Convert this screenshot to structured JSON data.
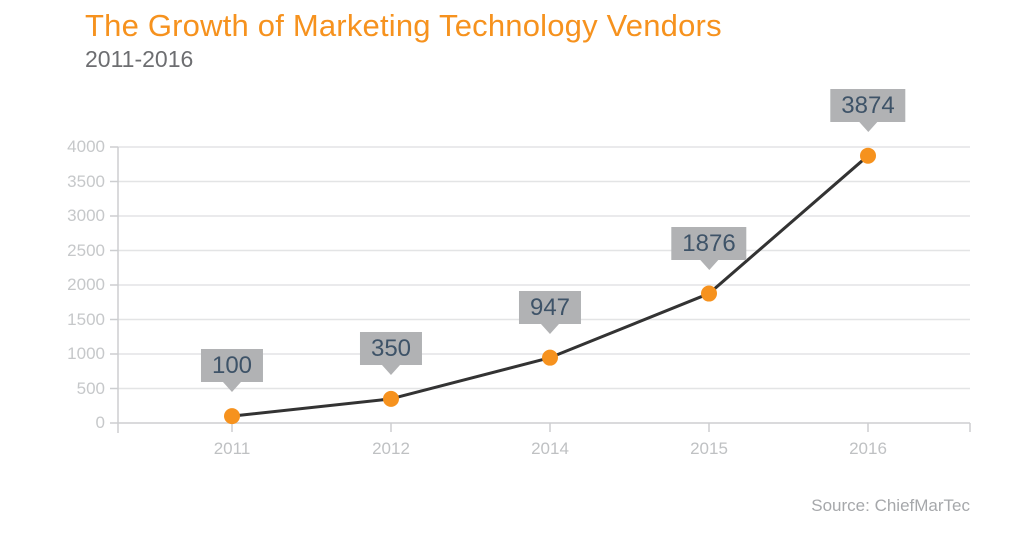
{
  "footer": {
    "source": "Source: ChiefMarTec"
  },
  "chart_data": {
    "type": "line",
    "title": "The Growth of Marketing Technology Vendors",
    "subtitle": "2011-2016",
    "categories": [
      "2011",
      "2012",
      "2014",
      "2015",
      "2016"
    ],
    "values": [
      100,
      350,
      947,
      1876,
      3874
    ],
    "xlabel": "",
    "ylabel": "",
    "ylim": [
      0,
      4000
    ],
    "ytick_step": 500,
    "yticks": [
      0,
      500,
      1000,
      1500,
      2000,
      2500,
      3000,
      3500,
      4000
    ],
    "grid": true,
    "legend": "none",
    "colors": {
      "accent_orange": "#F6921E",
      "line": "#333333",
      "gridline": "#E3E4E5",
      "axis": "#CDCED0",
      "axis_tick_label": "#C6C8CA",
      "callout_bg": "#B1B2B4",
      "callout_text": "#3E5368",
      "subtitle_text": "#6D6E71",
      "source_text": "#A6A8AB"
    }
  }
}
